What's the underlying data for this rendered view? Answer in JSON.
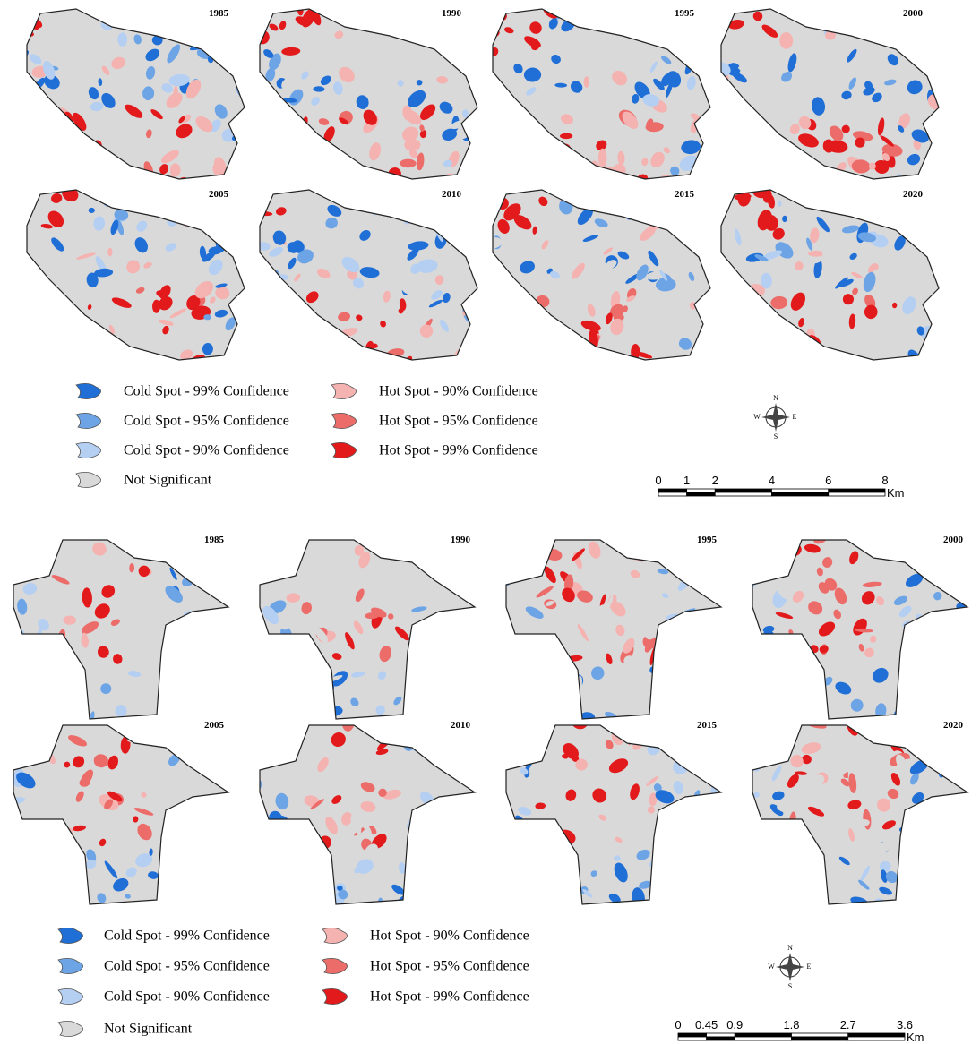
{
  "panels": [
    {
      "maps": [
        {
          "year": "1985"
        },
        {
          "year": "1990"
        },
        {
          "year": "1995"
        },
        {
          "year": "2000"
        },
        {
          "year": "2005"
        },
        {
          "year": "2010"
        },
        {
          "year": "2015"
        },
        {
          "year": "2020"
        }
      ],
      "legend": [
        {
          "label": "Cold Spot - 99% Confidence",
          "color": "#1f6fd6"
        },
        {
          "label": "Cold Spot - 95% Confidence",
          "color": "#6da4e6"
        },
        {
          "label": "Cold Spot - 90% Confidence",
          "color": "#b5cff2"
        },
        {
          "label": "Not Significant",
          "color": "#d9d9d9"
        },
        {
          "label": "Hot Spot - 90% Confidence",
          "color": "#f4b2b0"
        },
        {
          "label": "Hot Spot - 95% Confidence",
          "color": "#ec6c6a"
        },
        {
          "label": "Hot Spot - 99% Confidence",
          "color": "#e31a1c"
        }
      ],
      "compass": {
        "n": "N",
        "s": "S",
        "e": "E",
        "w": "W"
      },
      "scale": {
        "ticks": [
          "0",
          "1",
          "2",
          "4",
          "6",
          "8"
        ],
        "unit": "Km"
      }
    },
    {
      "maps": [
        {
          "year": "1985"
        },
        {
          "year": "1990"
        },
        {
          "year": "1995"
        },
        {
          "year": "2000"
        },
        {
          "year": "2005"
        },
        {
          "year": "2010"
        },
        {
          "year": "2015"
        },
        {
          "year": "2020"
        }
      ],
      "legend": [
        {
          "label": "Cold Spot - 99% Confidence",
          "color": "#1f6fd6"
        },
        {
          "label": "Cold Spot - 95% Confidence",
          "color": "#6da4e6"
        },
        {
          "label": "Cold Spot - 90% Confidence",
          "color": "#b5cff2"
        },
        {
          "label": "Not Significant",
          "color": "#d9d9d9"
        },
        {
          "label": "Hot Spot - 90% Confidence",
          "color": "#f4b2b0"
        },
        {
          "label": "Hot Spot - 95% Confidence",
          "color": "#ec6c6a"
        },
        {
          "label": "Hot Spot - 99% Confidence",
          "color": "#e31a1c"
        }
      ],
      "compass": {
        "n": "N",
        "s": "S",
        "e": "E",
        "w": "W"
      },
      "scale": {
        "ticks": [
          "0",
          "0.45",
          "0.9",
          "1.8",
          "2.7",
          "3.6"
        ],
        "unit": "Km"
      }
    }
  ]
}
